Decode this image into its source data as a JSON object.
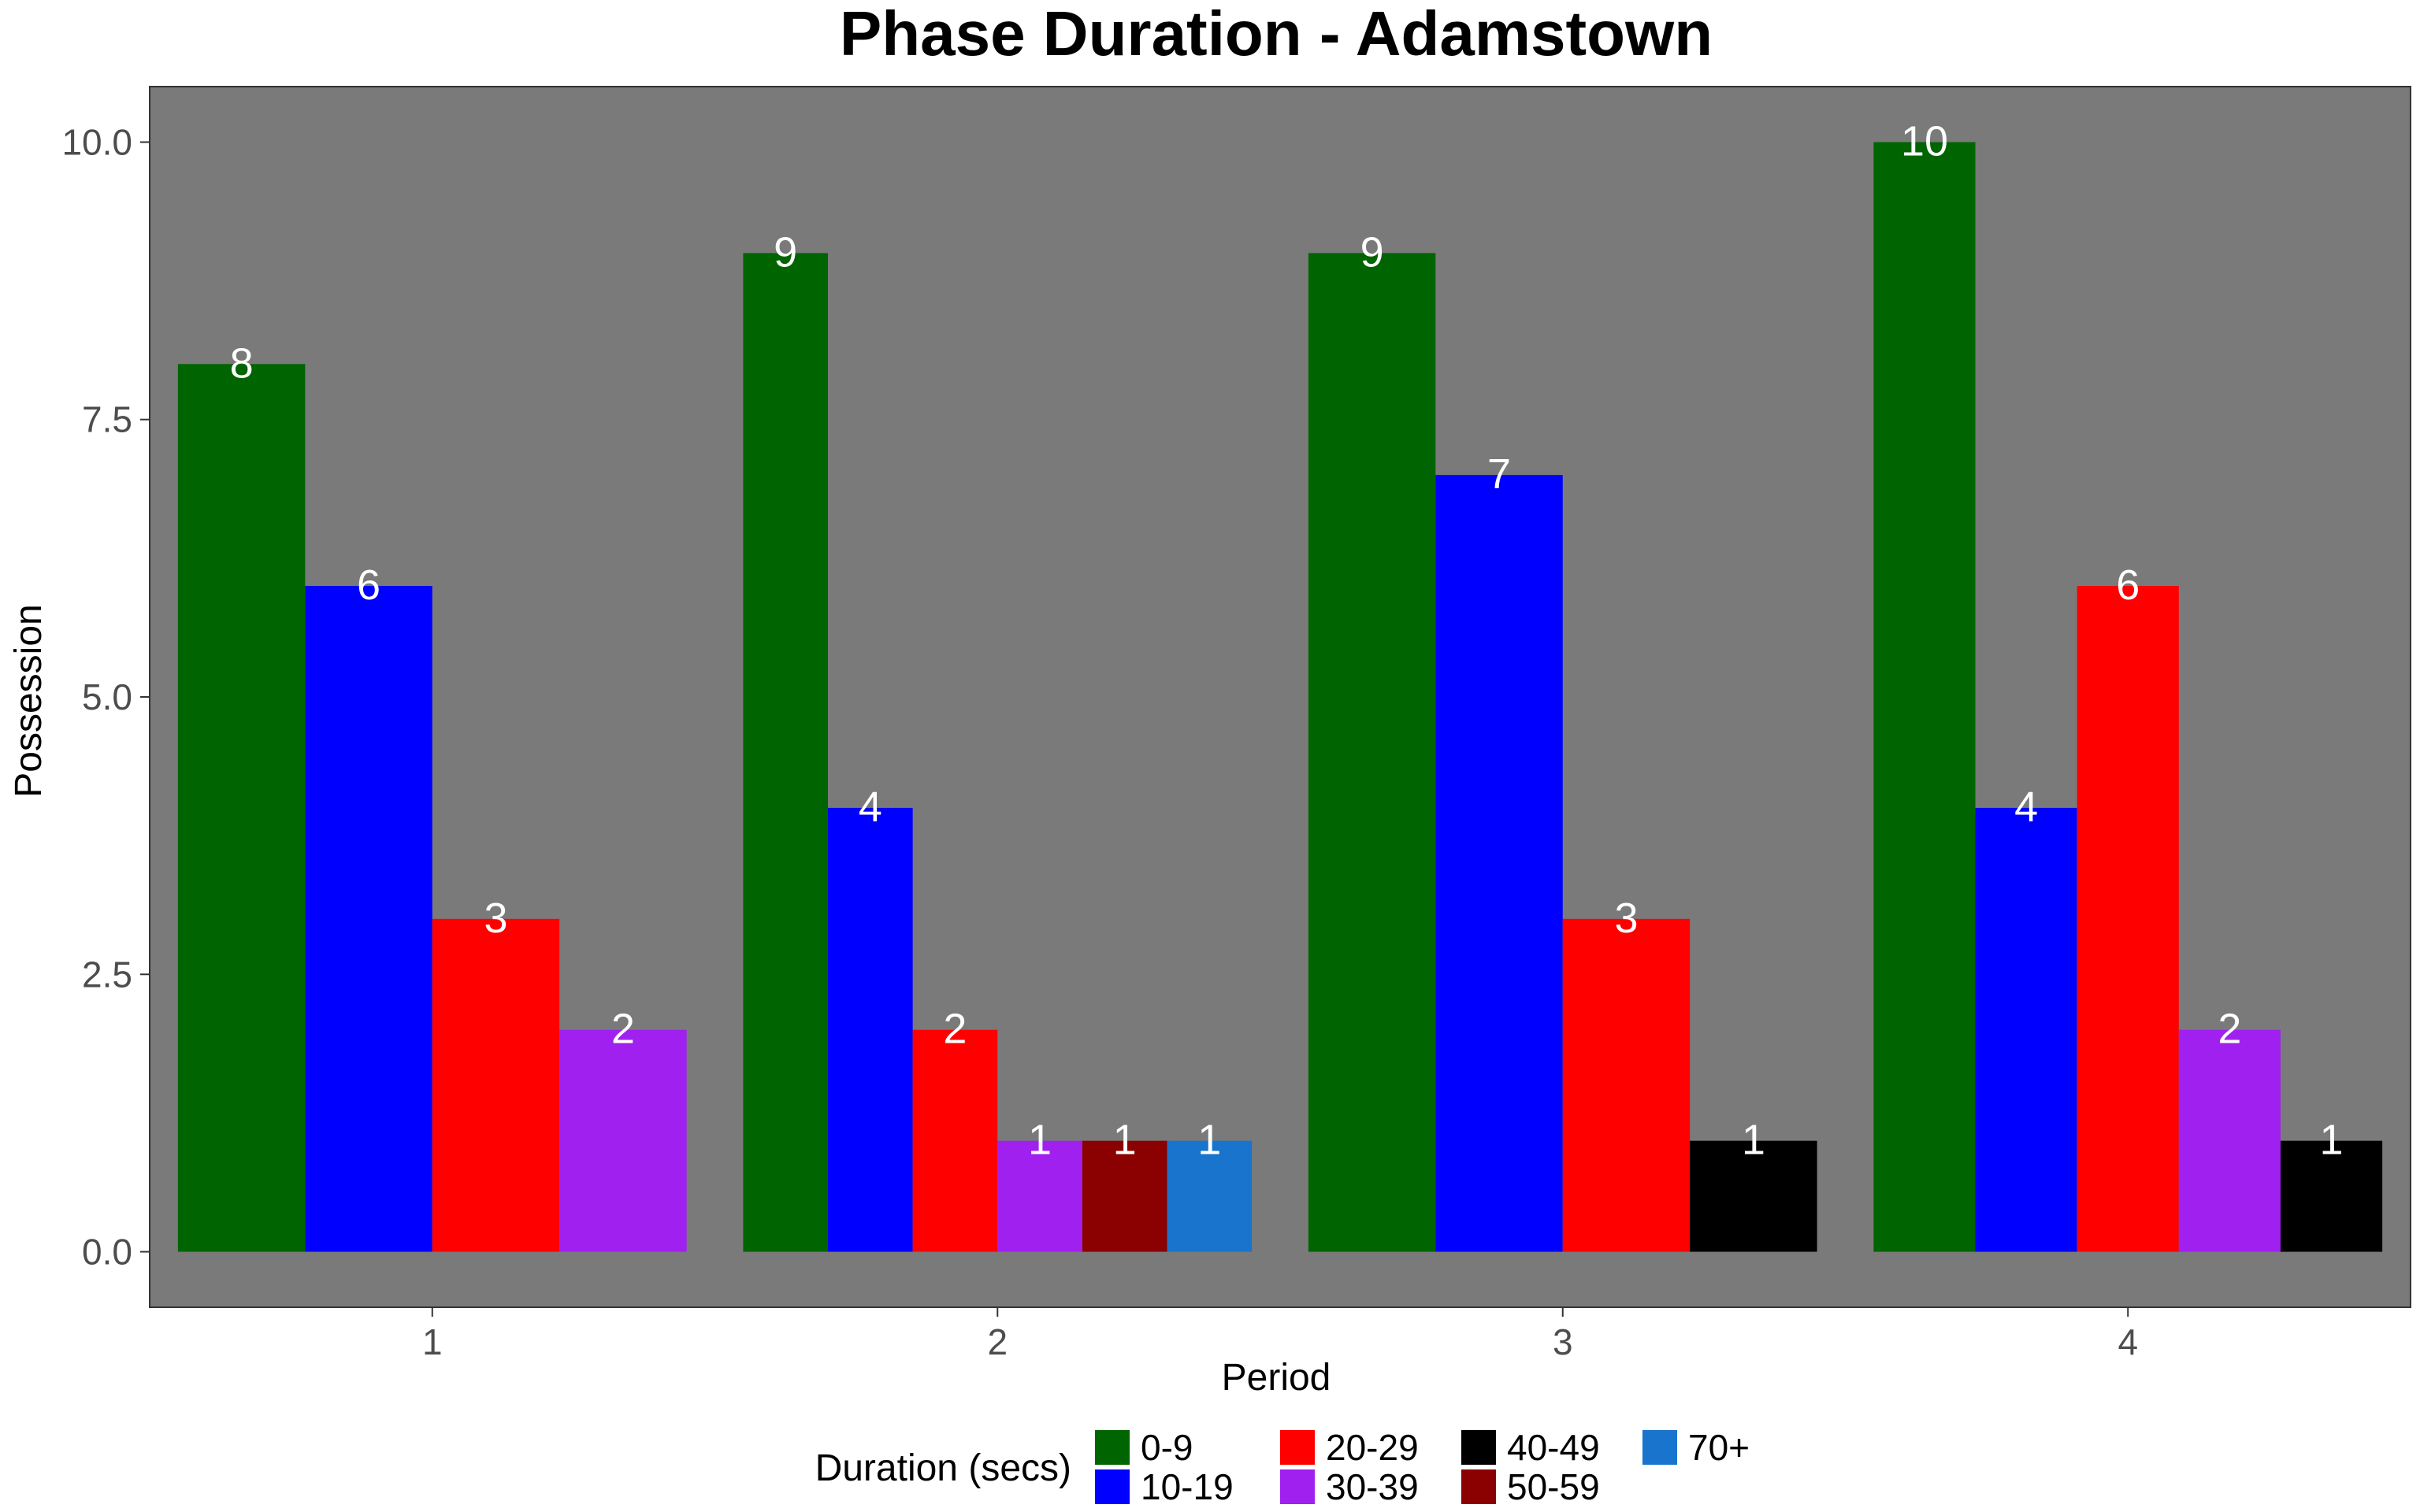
{
  "chart_data": {
    "type": "bar",
    "title": "Phase Duration - Adamstown",
    "xlabel": "Period",
    "ylabel": "Possession",
    "ylim": [
      -0.5,
      10.5
    ],
    "yticks": [
      "0.0",
      "2.5",
      "5.0",
      "7.5",
      "10.0"
    ],
    "categories": [
      "1",
      "2",
      "3",
      "4"
    ],
    "legend": {
      "title": "Duration (secs)",
      "placement": "bottom"
    },
    "series": [
      {
        "name": "0-9",
        "color": "#006400",
        "values": [
          8,
          9,
          9,
          10
        ]
      },
      {
        "name": "10-19",
        "color": "#0000ff",
        "values": [
          6,
          4,
          7,
          4
        ]
      },
      {
        "name": "20-29",
        "color": "#ff0000",
        "values": [
          3,
          2,
          3,
          6
        ]
      },
      {
        "name": "30-39",
        "color": "#a020f0",
        "values": [
          2,
          1,
          null,
          2
        ]
      },
      {
        "name": "40-49",
        "color": "#000000",
        "values": [
          null,
          null,
          1,
          1
        ]
      },
      {
        "name": "50-59",
        "color": "#8b0000",
        "values": [
          null,
          1,
          null,
          null
        ]
      },
      {
        "name": "70+",
        "color": "#1874cd",
        "values": [
          null,
          1,
          null,
          null
        ]
      }
    ],
    "panel_background": "#7a7a7a",
    "grid": false
  }
}
